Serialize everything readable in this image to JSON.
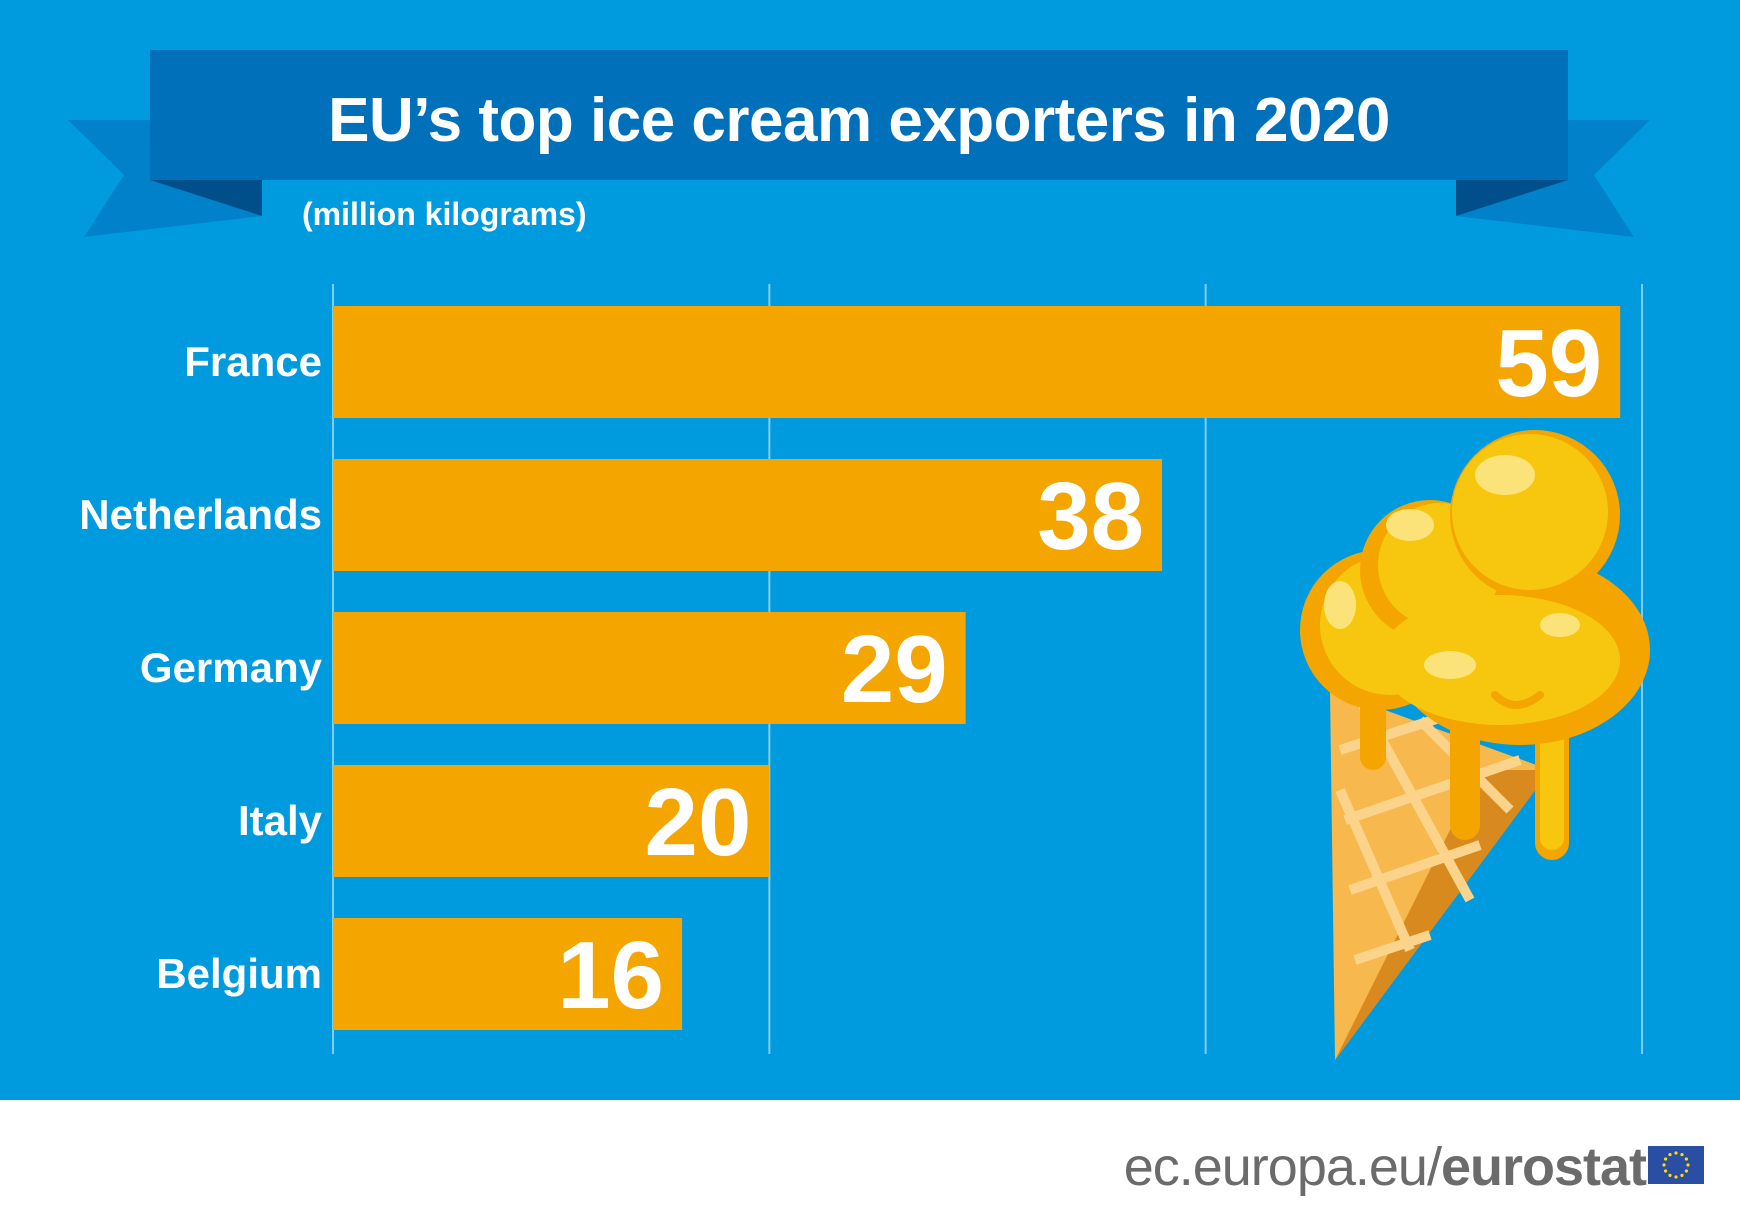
{
  "header": {
    "title": "EU’s top ice cream exporters in 2020",
    "subtitle": "(million kilograms)"
  },
  "chart_data": {
    "type": "bar",
    "orientation": "horizontal",
    "title": "EU’s top ice cream exporters in 2020",
    "subtitle": "(million kilograms)",
    "categories": [
      "France",
      "Netherlands",
      "Germany",
      "Italy",
      "Belgium"
    ],
    "values": [
      59,
      38,
      29,
      20,
      16
    ],
    "xlim": [
      0,
      60
    ],
    "grid": true,
    "legend": "none",
    "bar_color": "#f5a500",
    "label_color": "#ffffff"
  },
  "footer": {
    "site_light": "ec.europa.eu/",
    "site_bold": "eurostat"
  },
  "colors": {
    "background": "#009bde",
    "ribbon": "#0070ba",
    "ribbon_tail": "#0081c9",
    "gridline": "#7fcdef",
    "footer_text": "#6b6b6b",
    "eu_flag": "#2a4ea3"
  },
  "icons": {
    "illustration": "ice-cream-cone-icon",
    "logo": "eu-flag-icon"
  }
}
